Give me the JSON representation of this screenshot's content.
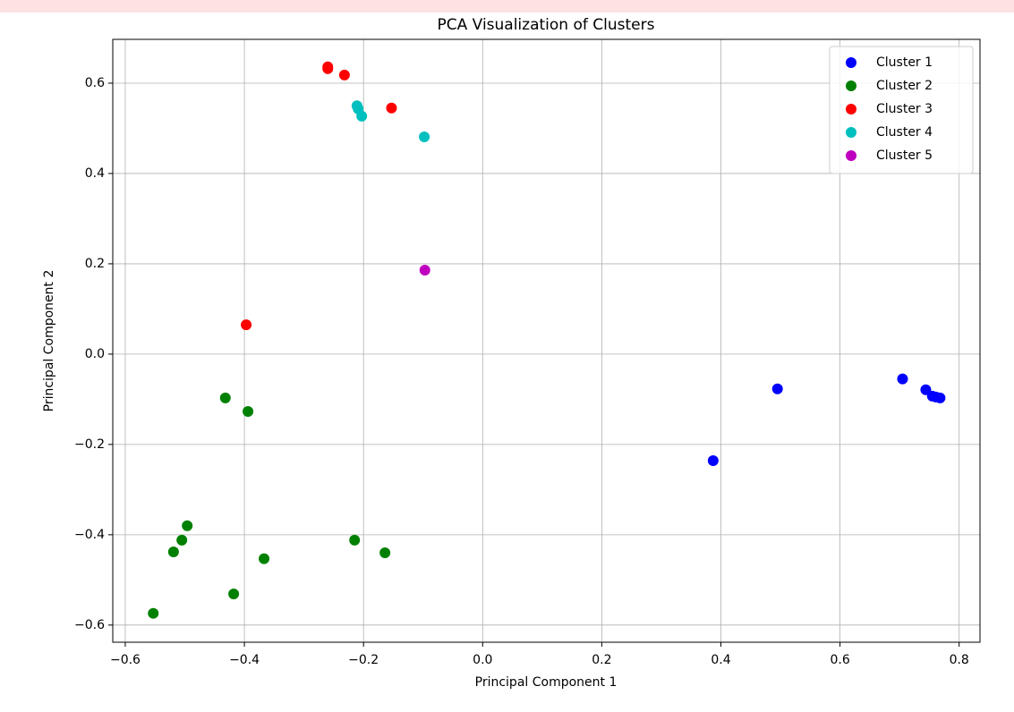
{
  "chart_data": {
    "type": "scatter",
    "title": "PCA Visualization of Clusters",
    "x_label": "Principal Component 1",
    "y_label": "Principal Component 2",
    "xlim": [
      -0.621,
      0.835
    ],
    "ylim": [
      -0.638,
      0.697
    ],
    "xticks": [
      {
        "value": -0.6,
        "label": "−0.6"
      },
      {
        "value": -0.4,
        "label": "−0.4"
      },
      {
        "value": -0.2,
        "label": "−0.2"
      },
      {
        "value": 0,
        "label": "0.0"
      },
      0.2,
      0.4,
      0.6,
      0.8
    ],
    "yticks": [
      {
        "value": -0.6,
        "label": "−0.6"
      },
      {
        "value": -0.4,
        "label": "−0.4"
      },
      {
        "value": -0.2,
        "label": "−0.2"
      },
      {
        "value": 0,
        "label": "0.0"
      },
      0.2,
      0.4,
      0.6
    ],
    "grid": true,
    "legend": "upper right",
    "series": [
      {
        "name": "Cluster 1",
        "color": "#0000ff",
        "x": [
          0.495,
          0.387,
          0.705,
          0.744,
          0.755,
          0.761,
          0.768
        ],
        "values": [
          -0.077,
          -0.236,
          -0.055,
          -0.079,
          -0.093,
          -0.095,
          -0.097
        ]
      },
      {
        "name": "Cluster 2",
        "color": "#008000",
        "x": [
          -0.432,
          -0.394,
          -0.496,
          -0.505,
          -0.519,
          -0.367,
          -0.418,
          -0.553,
          -0.215,
          -0.164
        ],
        "values": [
          -0.097,
          -0.127,
          -0.38,
          -0.412,
          -0.438,
          -0.453,
          -0.531,
          -0.574,
          -0.412,
          -0.44
        ]
      },
      {
        "name": "Cluster 3",
        "color": "#ff0000",
        "x": [
          -0.26,
          -0.26,
          -0.232,
          -0.153,
          -0.397
        ],
        "values": [
          0.636,
          0.632,
          0.618,
          0.545,
          0.065
        ]
      },
      {
        "name": "Cluster 4",
        "color": "#00bfbf",
        "x": [
          -0.211,
          -0.209,
          -0.203,
          -0.098
        ],
        "values": [
          0.55,
          0.543,
          0.527,
          0.481
        ]
      },
      {
        "name": "Cluster 5",
        "color": "#bf00bf",
        "x": [
          -0.097
        ],
        "values": [
          0.186
        ]
      }
    ]
  }
}
